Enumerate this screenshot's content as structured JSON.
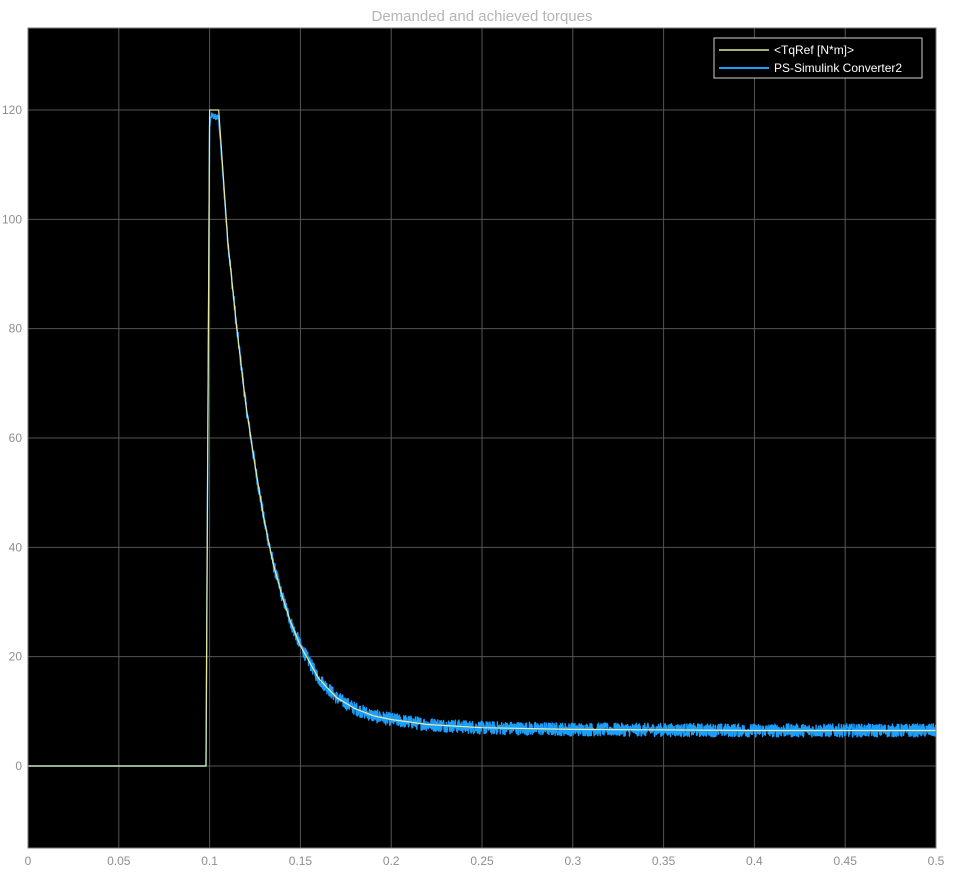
{
  "chart_data": {
    "type": "line",
    "title": "Demanded and achieved torques",
    "xlabel": "",
    "ylabel": "",
    "xlim": [
      0,
      0.5
    ],
    "ylim": [
      -15,
      135
    ],
    "x_ticks": [
      "0",
      "0.05",
      "0.1",
      "0.15",
      "0.2",
      "0.25",
      "0.3",
      "0.35",
      "0.4",
      "0.45",
      "0.5"
    ],
    "x_tick_values": [
      0,
      0.05,
      0.1,
      0.15,
      0.2,
      0.25,
      0.3,
      0.35,
      0.4,
      0.45,
      0.5
    ],
    "y_ticks": [
      "0",
      "20",
      "40",
      "60",
      "80",
      "100",
      "120"
    ],
    "y_tick_values": [
      0,
      20,
      40,
      60,
      80,
      100,
      120
    ],
    "grid": true,
    "legend_position": "top-right",
    "background": "#000000",
    "series": [
      {
        "name": "<TqRef [N*m]>",
        "color": "#e8e8a0",
        "x": [
          0,
          0.098,
          0.1,
          0.105,
          0.11,
          0.115,
          0.12,
          0.125,
          0.13,
          0.135,
          0.14,
          0.145,
          0.15,
          0.16,
          0.17,
          0.18,
          0.19,
          0.2,
          0.22,
          0.25,
          0.3,
          0.35,
          0.4,
          0.45,
          0.5
        ],
        "y": [
          0,
          0,
          120,
          120,
          96,
          80,
          66,
          55,
          45,
          37,
          31,
          26,
          22,
          16,
          12.5,
          10.5,
          9.2,
          8.5,
          7.6,
          7,
          6.7,
          6.6,
          6.5,
          6.5,
          6.5
        ]
      },
      {
        "name": "PS-Simulink Converter2",
        "color": "#1a9fff",
        "x": [
          0,
          0.098,
          0.1,
          0.101,
          0.105,
          0.11,
          0.115,
          0.12,
          0.125,
          0.13,
          0.135,
          0.14,
          0.145,
          0.15,
          0.16,
          0.17,
          0.18,
          0.19,
          0.2,
          0.22,
          0.25,
          0.3,
          0.35,
          0.4,
          0.45,
          0.5
        ],
        "y": [
          0,
          0,
          117,
          119,
          118.5,
          96,
          80,
          66,
          55,
          45,
          37,
          31,
          26,
          22,
          16,
          12.5,
          10.5,
          9.2,
          8.5,
          7.6,
          7,
          6.7,
          6.6,
          6.5,
          6.5,
          6.5
        ],
        "noise_band": 1.2
      }
    ]
  }
}
